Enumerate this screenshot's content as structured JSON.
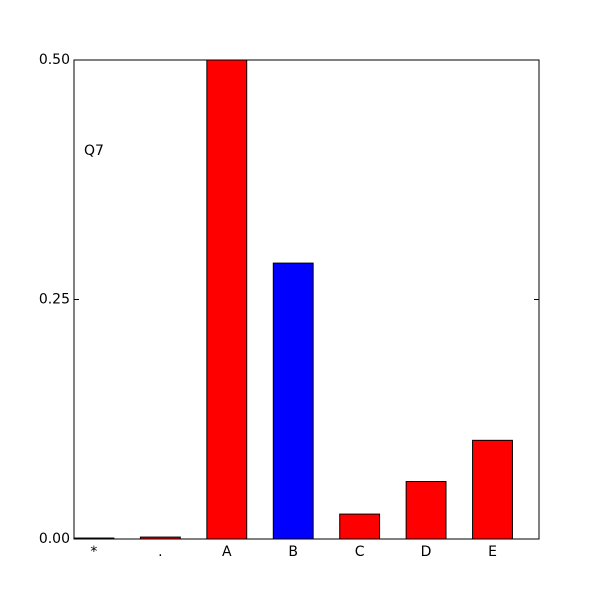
{
  "chart_data": {
    "type": "bar",
    "annotation": "Q7",
    "categories": [
      "*",
      ".",
      "A",
      "B",
      "C",
      "D",
      "E"
    ],
    "values": [
      0.001,
      0.002,
      0.5,
      0.288,
      0.026,
      0.06,
      0.103
    ],
    "colors": [
      "#ff0000",
      "#ff0000",
      "#ff0000",
      "#0000ff",
      "#ff0000",
      "#ff0000",
      "#ff0000"
    ],
    "ylim": [
      0,
      0.5
    ],
    "yticks": [
      {
        "value": 0,
        "label": "0.00"
      },
      {
        "value": 0.25,
        "label": "0.25"
      },
      {
        "value": 0.5,
        "label": "0.50"
      }
    ],
    "grid": false
  }
}
